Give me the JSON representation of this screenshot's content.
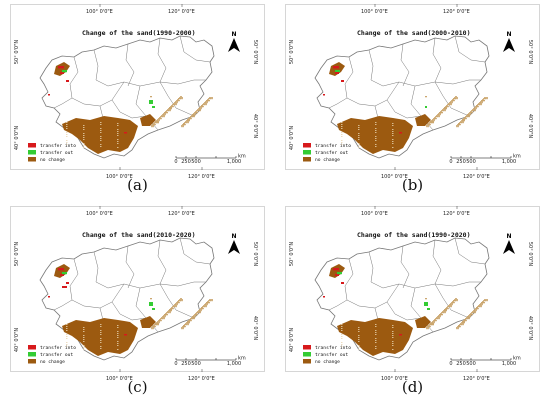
{
  "colors": {
    "transfer_into": "#d7191c",
    "transfer_out": "#33cc33",
    "no_change": "#9c5a10",
    "sand": "#caa46c",
    "boundary": "#777777"
  },
  "icons": {
    "north": "north-arrow-icon"
  },
  "common": {
    "top_ticks": [
      "100° 0'0\"E",
      "120° 0'0\"E"
    ],
    "bottom_ticks": [
      "100° 0'0\"E",
      "120° 0'0\"E"
    ],
    "left_ticks": [
      "50° 0'0\"N",
      "40° 0'0\"N"
    ],
    "right_ticks": [
      "50° 0'0\"N",
      "40° 0'0\"N"
    ],
    "north": "N",
    "scale_labels": [
      "0",
      "250",
      "500",
      "1,000"
    ],
    "scale_unit": "km",
    "legend": [
      "transfer into",
      "transfer out",
      "no change"
    ]
  },
  "panels": [
    {
      "caption": "(a)",
      "title": "Change of the sand(1990-2000)"
    },
    {
      "caption": "(b)",
      "title": "Change of the sand(2000-2010)"
    },
    {
      "caption": "(c)",
      "title": "Change of the sand(2010-2020)"
    },
    {
      "caption": "(d)",
      "title": "Change of the sand(1990-2020)"
    }
  ]
}
